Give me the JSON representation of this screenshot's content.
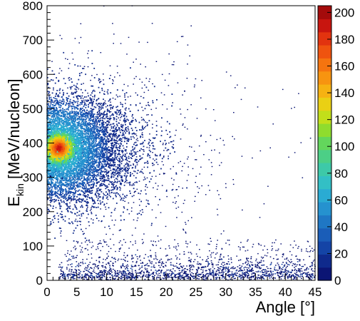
{
  "chart_data": {
    "type": "heatmap",
    "title": "",
    "xlabel": "Angle [°]",
    "ylabel_main": "E",
    "ylabel_sub": "kin",
    "ylabel_rest": " [MeV/nucleon]",
    "xlim": [
      0,
      45
    ],
    "ylim": [
      0,
      800
    ],
    "x_ticks": [
      "0",
      "5",
      "10",
      "15",
      "20",
      "25",
      "30",
      "35",
      "40",
      "45"
    ],
    "y_ticks": [
      "0",
      "100",
      "200",
      "300",
      "400",
      "500",
      "600",
      "700",
      "800"
    ],
    "colorbar": {
      "range": [
        0,
        205
      ],
      "ticks": [
        "0",
        "20",
        "40",
        "60",
        "80",
        "100",
        "120",
        "140",
        "160",
        "180",
        "200"
      ],
      "colors": [
        "#0b1574",
        "#0f2a8c",
        "#1444a6",
        "#1a5db8",
        "#1f77c4",
        "#2592cf",
        "#2aabd3",
        "#33bfc5",
        "#3dc9a8",
        "#4ccf86",
        "#63d65c",
        "#8fdc2e",
        "#c2df1a",
        "#ead014",
        "#f6b212",
        "#f79410",
        "#f5740f",
        "#ef530f",
        "#e2330f",
        "#c8150f",
        "#a40b0b"
      ]
    },
    "distribution": {
      "core_peak": {
        "angle": 2.0,
        "energy": 385,
        "count": 205
      },
      "main_cluster": {
        "angle_range": [
          0,
          25
        ],
        "energy_range": [
          180,
          600
        ],
        "peak_energy": 380
      },
      "low_energy_band": {
        "angle_range": [
          2,
          45
        ],
        "energy_range": [
          0,
          50
        ]
      },
      "sparse_halo": {
        "angle_range": [
          5,
          45
        ],
        "energy_range": [
          50,
          700
        ]
      },
      "max_energy_seen": 745
    },
    "grid": false,
    "legend": "colorbar-right"
  }
}
